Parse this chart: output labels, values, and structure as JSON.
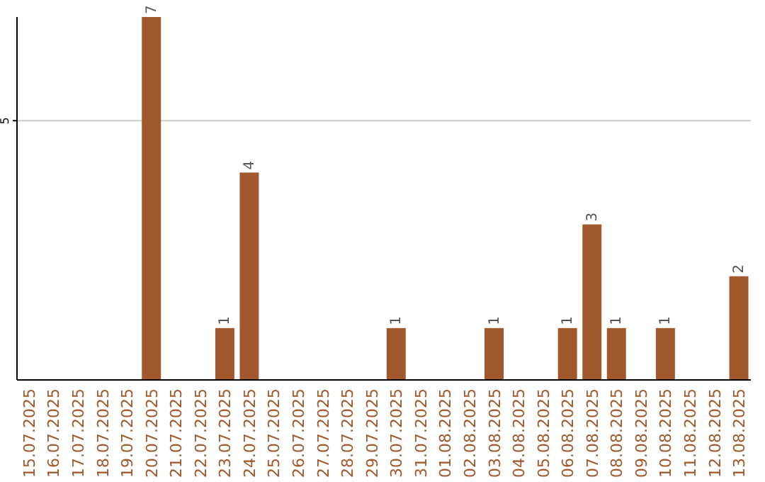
{
  "chart_data": {
    "type": "bar",
    "categories": [
      "15.07.2025",
      "16.07.2025",
      "17.07.2025",
      "18.07.2025",
      "19.07.2025",
      "20.07.2025",
      "21.07.2025",
      "22.07.2025",
      "23.07.2025",
      "24.07.2025",
      "25.07.2025",
      "26.07.2025",
      "27.07.2025",
      "28.07.2025",
      "29.07.2025",
      "30.07.2025",
      "31.07.2025",
      "01.08.2025",
      "02.08.2025",
      "03.08.2025",
      "04.08.2025",
      "05.08.2025",
      "06.08.2025",
      "07.08.2025",
      "08.08.2025",
      "09.08.2025",
      "10.08.2025",
      "11.08.2025",
      "12.08.2025",
      "13.08.2025"
    ],
    "values": [
      0,
      0,
      0,
      0,
      0,
      7,
      0,
      0,
      1,
      4,
      0,
      0,
      0,
      0,
      0,
      1,
      0,
      0,
      0,
      1,
      0,
      0,
      1,
      3,
      1,
      0,
      1,
      0,
      0,
      2
    ],
    "value_labels": [
      null,
      null,
      null,
      null,
      null,
      "7",
      null,
      null,
      "1",
      "4",
      null,
      null,
      null,
      null,
      null,
      "1",
      null,
      null,
      null,
      "1",
      null,
      null,
      "1",
      "3",
      "1",
      null,
      "1",
      null,
      null,
      "2"
    ],
    "color": "#a0582c",
    "ylim": [
      0,
      7
    ],
    "yticks": [
      5
    ],
    "grid": "y"
  }
}
